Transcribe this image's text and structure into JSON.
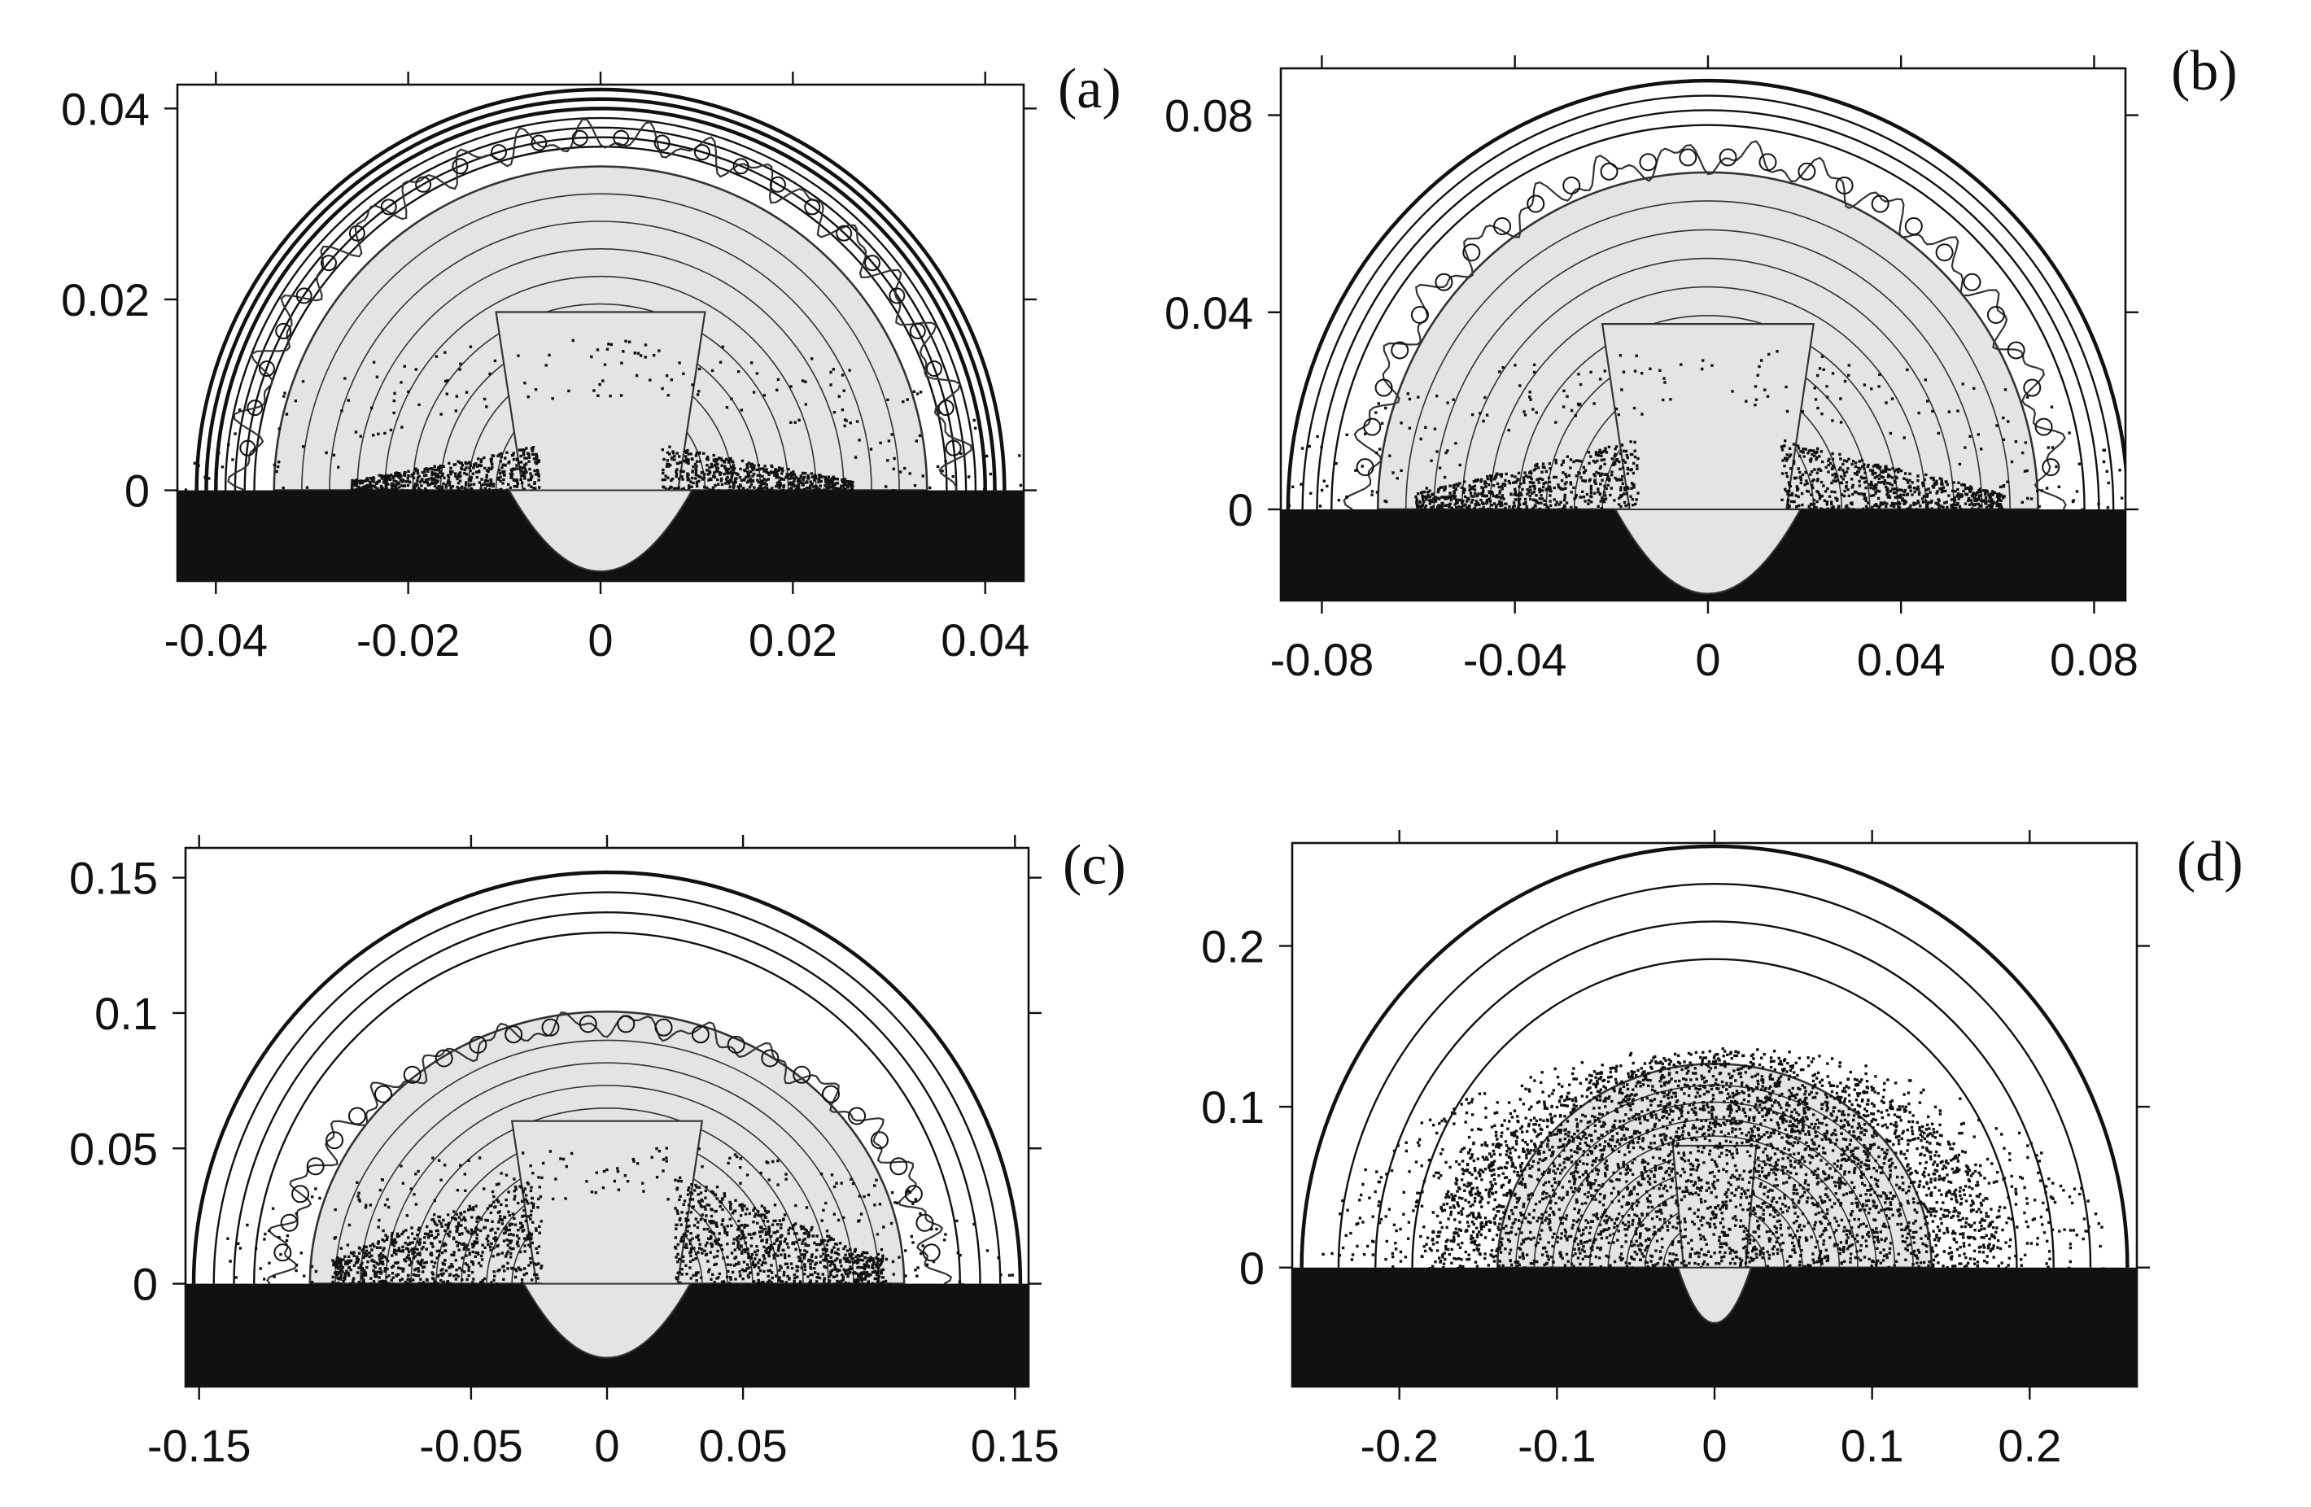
{
  "chart_data": [
    {
      "type": "contour",
      "panel_label": "(a)",
      "xlim": [
        -0.044,
        0.044
      ],
      "ylim": [
        -0.0095,
        0.0425
      ],
      "xticks": [
        -0.04,
        -0.02,
        0,
        0.02,
        0.04
      ],
      "xtick_labels": [
        "-0.04",
        "-0.02",
        "0",
        "0.02",
        "0.04"
      ],
      "yticks": [
        0,
        0.02,
        0.04
      ],
      "ytick_labels": [
        "0",
        "0.02",
        "0.04"
      ],
      "shock_radius": 0.042,
      "inner_shell_radius": 0.035,
      "grid": false,
      "legend": "none"
    },
    {
      "type": "contour",
      "panel_label": "(b)",
      "xlim": [
        -0.0885,
        0.0865
      ],
      "ylim": [
        -0.0185,
        0.0895
      ],
      "xticks": [
        -0.08,
        -0.04,
        0,
        0.04,
        0.08
      ],
      "xtick_labels": [
        "-0.08",
        "-0.04",
        "0",
        "0.04",
        "0.08"
      ],
      "yticks": [
        0,
        0.04,
        0.08
      ],
      "ytick_labels": [
        "0",
        "0.04",
        "0.08"
      ],
      "shock_radius": 0.087,
      "inner_shell_radius": 0.072,
      "grid": false,
      "legend": "none"
    },
    {
      "type": "contour",
      "panel_label": "(c)",
      "xlim": [
        -0.155,
        0.155
      ],
      "ylim": [
        -0.038,
        0.161
      ],
      "xticks": [
        -0.15,
        -0.05,
        0,
        0.05,
        0.15
      ],
      "xtick_labels": [
        "-0.15",
        "-0.05",
        "0",
        "0.05",
        "0.15"
      ],
      "yticks": [
        0,
        0.05,
        0.1,
        0.15
      ],
      "ytick_labels": [
        "0",
        "0.05",
        "0.1",
        "0.15"
      ],
      "shock_radius": 0.152,
      "inner_shell_radius": 0.115,
      "grid": false,
      "legend": "none"
    },
    {
      "type": "contour",
      "panel_label": "(d)",
      "xlim": [
        -0.268,
        0.268
      ],
      "ylim": [
        -0.074,
        0.264
      ],
      "xticks": [
        -0.2,
        -0.1,
        0,
        0.1,
        0.2
      ],
      "xtick_labels": [
        "-0.2",
        "-0.1",
        "0",
        "0.1",
        "0.2"
      ],
      "yticks": [
        0,
        0.1,
        0.2
      ],
      "ytick_labels": [
        "0",
        "0.1",
        "0.2"
      ],
      "shock_radius": 0.262,
      "inner_shell_radius": 0.145,
      "grid": false,
      "legend": "none"
    }
  ],
  "colors": {
    "background": "#ffffff",
    "ink": "#111111",
    "contour_line": "#333333",
    "shaded_region": "#e4e4e4"
  }
}
